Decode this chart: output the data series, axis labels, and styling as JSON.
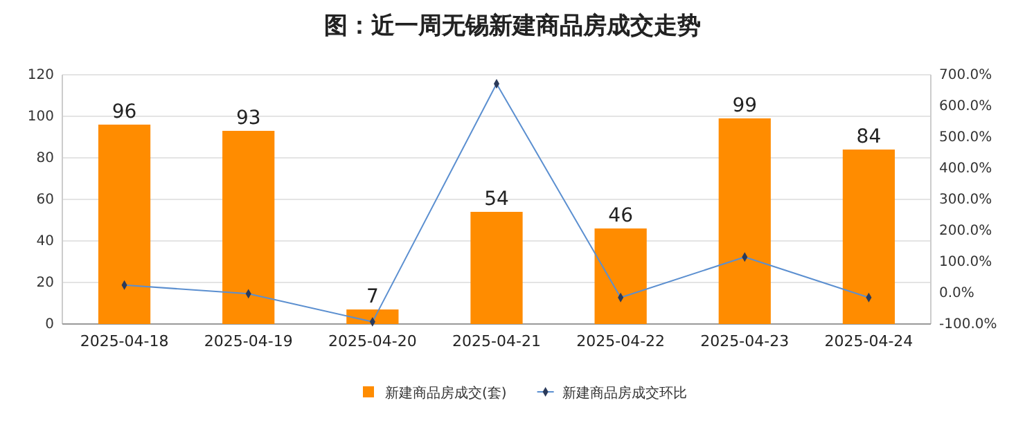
{
  "chart_data": {
    "type": "bar",
    "title": "图：近一周无锡新建商品房成交走势",
    "categories": [
      "2025-04-18",
      "2025-04-19",
      "2025-04-20",
      "2025-04-21",
      "2025-04-22",
      "2025-04-23",
      "2025-04-24"
    ],
    "series": [
      {
        "name": "新建商品房成交(套)",
        "color": "#ff8c00",
        "values": [
          96,
          93,
          7,
          54,
          46,
          99,
          84
        ],
        "data_labels": true
      },
      {
        "name": "新建商品房成交环比",
        "type": "line",
        "axis": "y2",
        "color": "#5b8fd0",
        "marker": "diamond",
        "values": [
          25,
          -3,
          -93,
          671,
          -15,
          115,
          -15
        ]
      }
    ],
    "ylim": [
      0,
      120
    ],
    "yticks": [
      0,
      20,
      40,
      60,
      80,
      100,
      120
    ],
    "y2lim": [
      -100,
      700
    ],
    "y2ticks": [
      {
        "value": -100,
        "label": "-100.0%"
      },
      {
        "value": 0,
        "label": "0.0%"
      },
      {
        "value": 100,
        "label": "100.0%"
      },
      {
        "value": 200,
        "label": "200.0%"
      },
      {
        "value": 300,
        "label": "300.0%"
      },
      {
        "value": 400,
        "label": "400.0%"
      },
      {
        "value": 500,
        "label": "500.0%"
      },
      {
        "value": 600,
        "label": "600.0%"
      },
      {
        "value": 700,
        "label": "700.0%"
      }
    ],
    "grid": "y",
    "legend": "bottom"
  }
}
